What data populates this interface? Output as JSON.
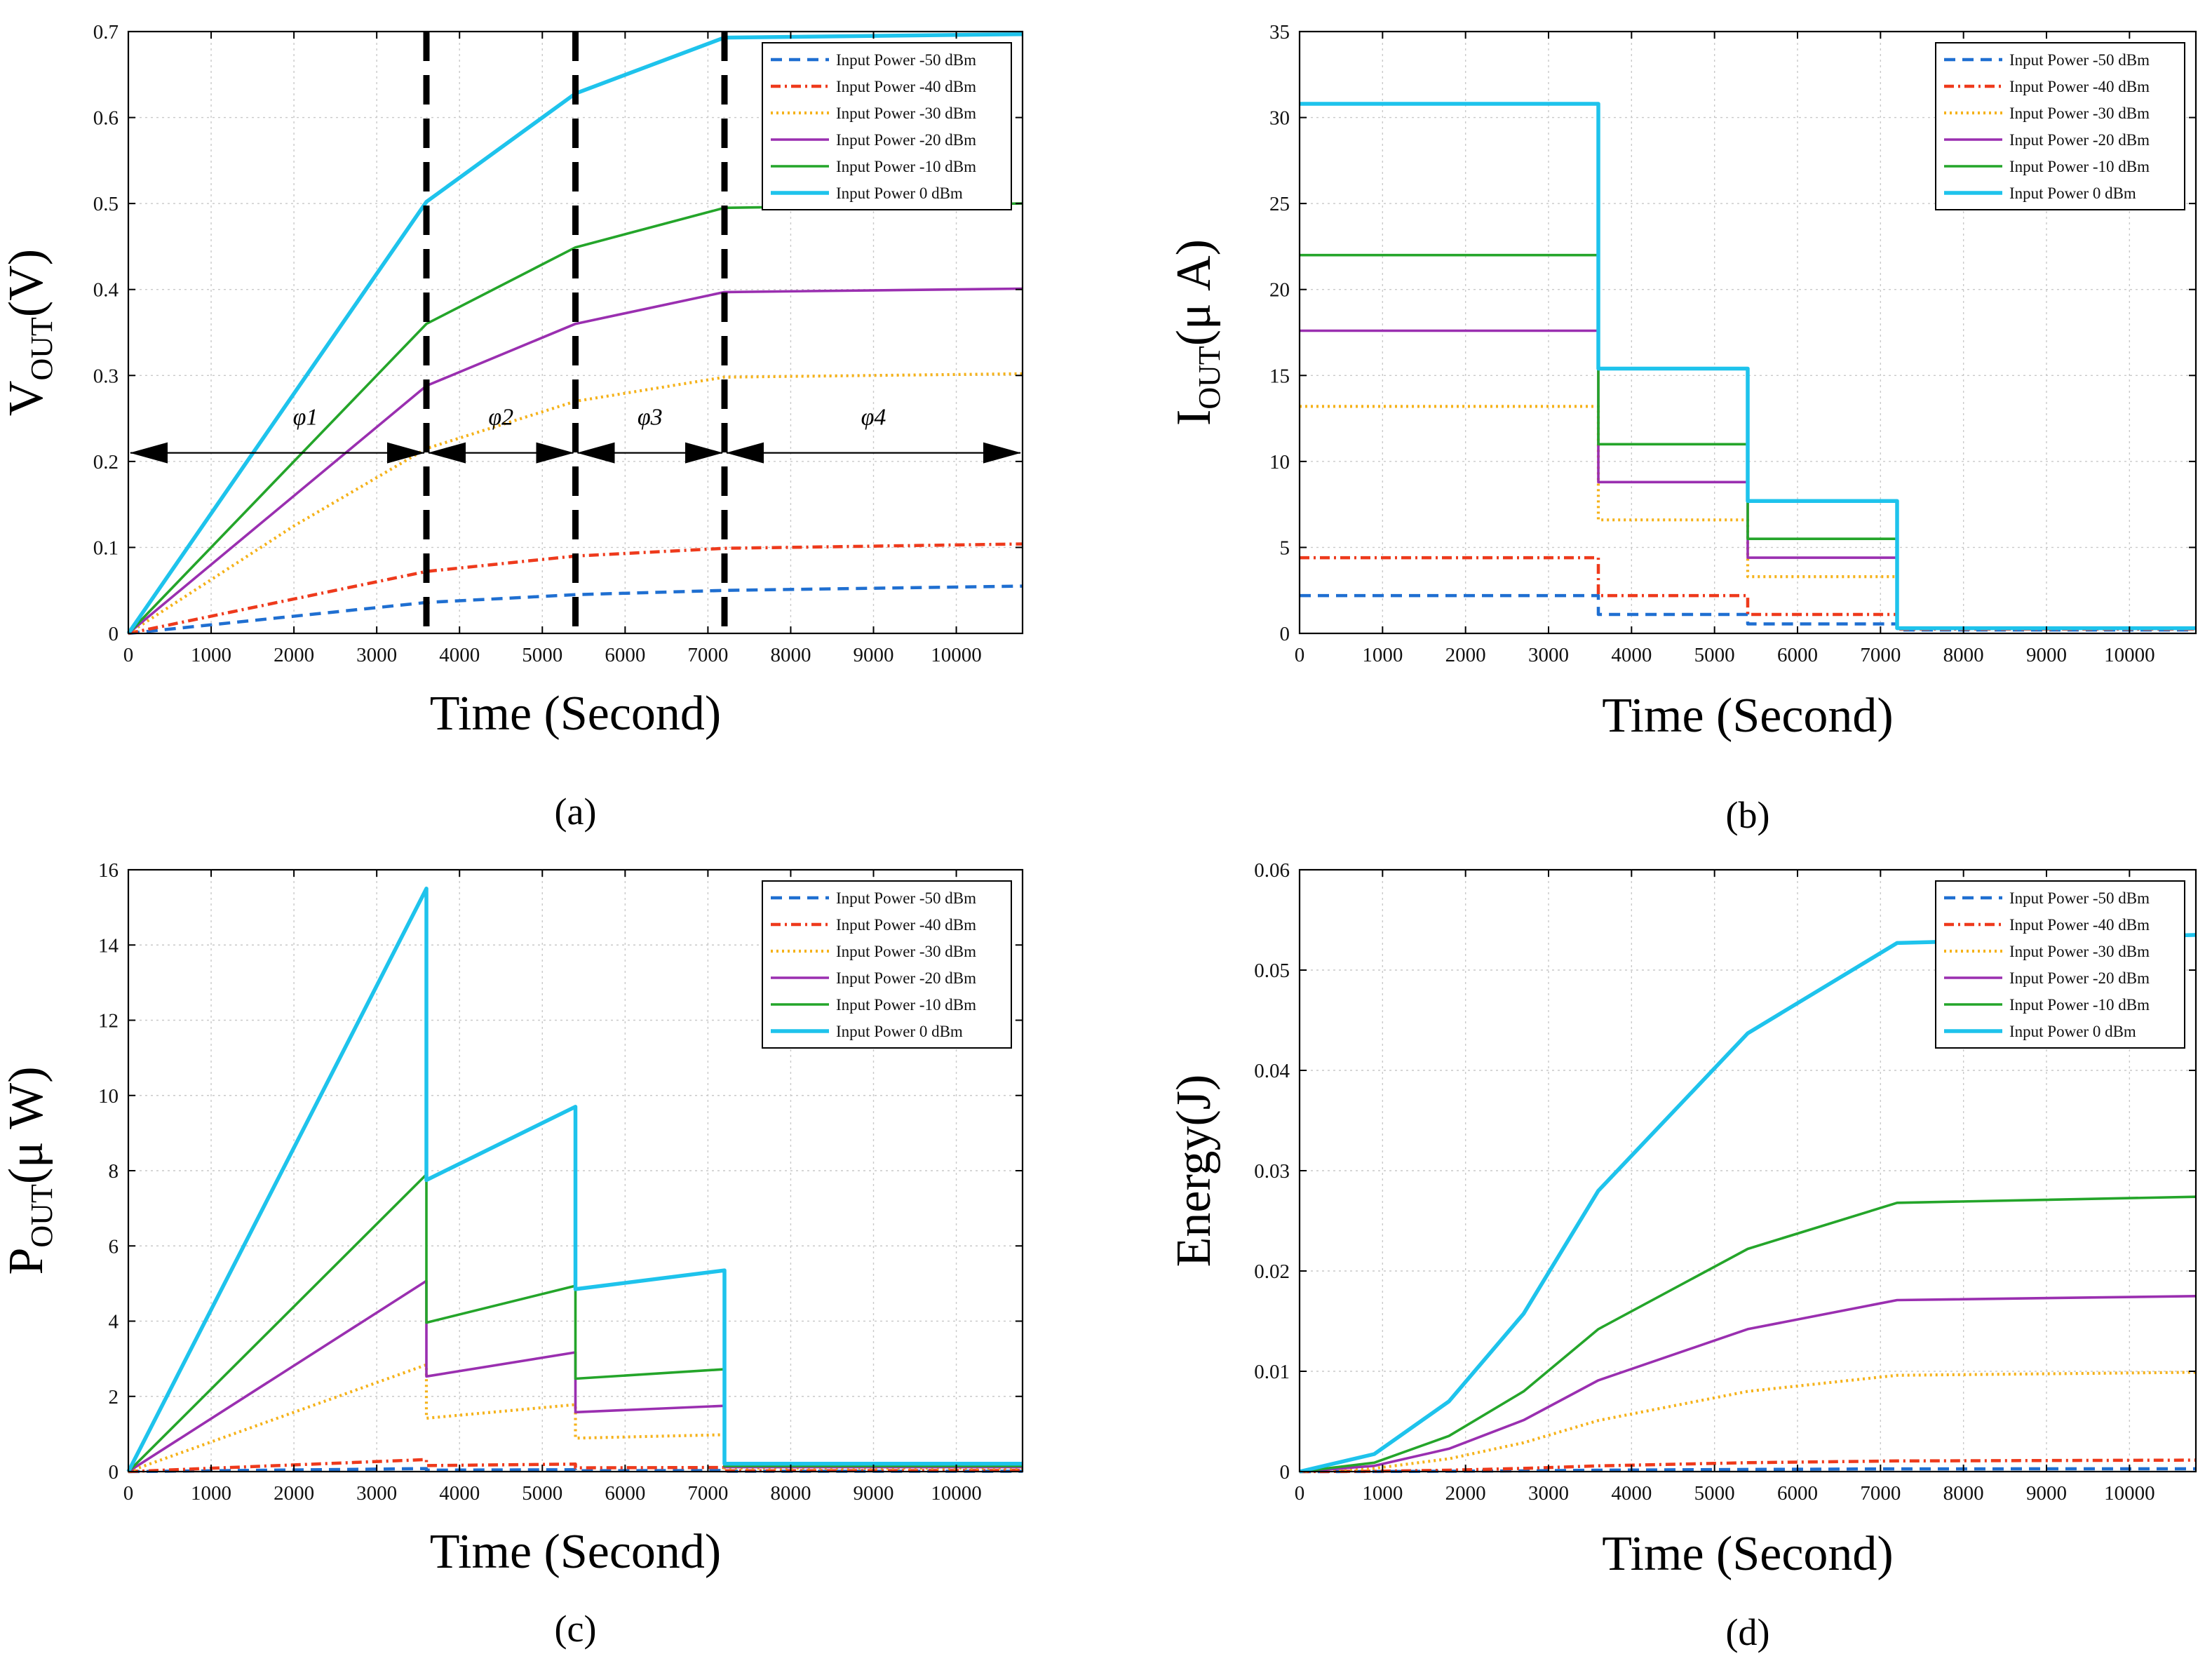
{
  "legend_labels": [
    "Input Power -50 dBm",
    "Input Power -40 dBm",
    "Input Power -30 dBm",
    "Input Power -20 dBm",
    "Input Power -10 dBm",
    "Input Power 0 dBm"
  ],
  "chart_data": [
    {
      "id": "a",
      "type": "line",
      "caption": "(a)",
      "xlabel": "Time (Second)",
      "ylabel": {
        "main": "V",
        "sub": "OUT",
        "rest": "(V)"
      },
      "xlim": [
        0,
        10800
      ],
      "ylim": [
        0,
        0.7
      ],
      "xticks": [
        0,
        1000,
        2000,
        3000,
        4000,
        5000,
        6000,
        7000,
        8000,
        9000,
        10000
      ],
      "yticks": [
        0,
        0.1,
        0.2,
        0.3,
        0.4,
        0.5,
        0.6,
        0.7
      ],
      "grid": true,
      "legend_position": "top-right",
      "phase_lines_x": [
        3600,
        5400,
        7200
      ],
      "phase_arrow_y": 0.21,
      "phases": [
        {
          "label": "φ1",
          "from": 0,
          "to": 3600
        },
        {
          "label": "φ2",
          "from": 3600,
          "to": 5400
        },
        {
          "label": "φ3",
          "from": 5400,
          "to": 7200
        },
        {
          "label": "φ4",
          "from": 7200,
          "to": 10800
        }
      ],
      "series": [
        {
          "name": "Input Power -50 dBm",
          "x": [
            0,
            3600,
            5400,
            7200,
            10800
          ],
          "y": [
            0,
            0.036,
            0.045,
            0.05,
            0.055
          ]
        },
        {
          "name": "Input Power -40 dBm",
          "x": [
            0,
            3600,
            5400,
            7200,
            10800
          ],
          "y": [
            0,
            0.072,
            0.09,
            0.099,
            0.104
          ]
        },
        {
          "name": "Input Power -30 dBm",
          "x": [
            0,
            2000,
            3600,
            5400,
            7200,
            10800
          ],
          "y": [
            0,
            0.125,
            0.215,
            0.27,
            0.298,
            0.302
          ]
        },
        {
          "name": "Input Power -20 dBm",
          "x": [
            0,
            3600,
            5400,
            7200,
            10800
          ],
          "y": [
            0,
            0.288,
            0.36,
            0.397,
            0.401
          ]
        },
        {
          "name": "Input Power -10 dBm",
          "x": [
            0,
            3600,
            5400,
            7200,
            10800
          ],
          "y": [
            0,
            0.36,
            0.449,
            0.495,
            0.5
          ]
        },
        {
          "name": "Input Power 0 dBm",
          "x": [
            0,
            3600,
            5400,
            7200,
            10800
          ],
          "y": [
            0,
            0.502,
            0.628,
            0.693,
            0.697
          ]
        }
      ]
    },
    {
      "id": "b",
      "type": "line",
      "caption": "(b)",
      "xlabel": "Time (Second)",
      "ylabel": {
        "main": "I",
        "sub": "OUT",
        "rest": "(μ A)"
      },
      "xlim": [
        0,
        10800
      ],
      "ylim": [
        0,
        35
      ],
      "xticks": [
        0,
        1000,
        2000,
        3000,
        4000,
        5000,
        6000,
        7000,
        8000,
        9000,
        10000
      ],
      "yticks": [
        0,
        5,
        10,
        15,
        20,
        25,
        30,
        35
      ],
      "grid": true,
      "legend_position": "top-right",
      "series": [
        {
          "name": "Input Power -50 dBm",
          "x": [
            0,
            3600,
            3600,
            5400,
            5400,
            7200,
            7200,
            10800
          ],
          "y": [
            2.2,
            2.2,
            1.1,
            1.1,
            0.55,
            0.55,
            0.2,
            0.2
          ]
        },
        {
          "name": "Input Power -40 dBm",
          "x": [
            0,
            3600,
            3600,
            5400,
            5400,
            7200,
            7200,
            10800
          ],
          "y": [
            4.4,
            4.4,
            2.2,
            2.2,
            1.1,
            1.1,
            0.25,
            0.25
          ]
        },
        {
          "name": "Input Power -30 dBm",
          "x": [
            0,
            3600,
            3600,
            5400,
            5400,
            7200,
            7200,
            10800
          ],
          "y": [
            13.2,
            13.2,
            6.6,
            6.6,
            3.3,
            3.3,
            0.3,
            0.3
          ]
        },
        {
          "name": "Input Power -20 dBm",
          "x": [
            0,
            3600,
            3600,
            5400,
            5400,
            7200,
            7200,
            10800
          ],
          "y": [
            17.6,
            17.6,
            8.8,
            8.8,
            4.4,
            4.4,
            0.3,
            0.3
          ]
        },
        {
          "name": "Input Power -10 dBm",
          "x": [
            0,
            3600,
            3600,
            5400,
            5400,
            7200,
            7200,
            10800
          ],
          "y": [
            22,
            22,
            11,
            11,
            5.5,
            5.5,
            0.3,
            0.3
          ]
        },
        {
          "name": "Input Power 0 dBm",
          "x": [
            0,
            3600,
            3600,
            5400,
            5400,
            7200,
            7200,
            10800
          ],
          "y": [
            30.8,
            30.8,
            15.4,
            15.4,
            7.7,
            7.7,
            0.3,
            0.3
          ]
        }
      ]
    },
    {
      "id": "c",
      "type": "line",
      "caption": "(c)",
      "xlabel": "Time (Second)",
      "ylabel": {
        "main": "P",
        "sub": "OUT",
        "rest": "(μ W)"
      },
      "xlim": [
        0,
        10800
      ],
      "ylim": [
        0,
        16
      ],
      "xticks": [
        0,
        1000,
        2000,
        3000,
        4000,
        5000,
        6000,
        7000,
        8000,
        9000,
        10000
      ],
      "yticks": [
        0,
        2,
        4,
        6,
        8,
        10,
        12,
        14,
        16
      ],
      "grid": true,
      "legend_position": "top-right",
      "series": [
        {
          "name": "Input Power -50 dBm",
          "x": [
            0,
            3600,
            3600,
            5400,
            5400,
            7200,
            7200,
            10800
          ],
          "y": [
            0,
            0.08,
            0.04,
            0.05,
            0.025,
            0.03,
            0.01,
            0.01
          ]
        },
        {
          "name": "Input Power -40 dBm",
          "x": [
            0,
            3600,
            3600,
            5400,
            5400,
            7200,
            7200,
            10800
          ],
          "y": [
            0,
            0.32,
            0.16,
            0.2,
            0.1,
            0.11,
            0.02,
            0.03
          ]
        },
        {
          "name": "Input Power -30 dBm",
          "x": [
            0,
            3600,
            3600,
            5400,
            5400,
            7200,
            7200,
            10800
          ],
          "y": [
            0,
            2.84,
            1.42,
            1.78,
            0.89,
            0.98,
            0.09,
            0.09
          ]
        },
        {
          "name": "Input Power -20 dBm",
          "x": [
            0,
            3600,
            3600,
            5400,
            5400,
            7200,
            7200,
            10800
          ],
          "y": [
            0,
            5.07,
            2.53,
            3.17,
            1.58,
            1.75,
            0.12,
            0.12
          ]
        },
        {
          "name": "Input Power -10 dBm",
          "x": [
            0,
            3600,
            3600,
            5400,
            5400,
            7200,
            7200,
            10800
          ],
          "y": [
            0,
            7.9,
            3.96,
            4.94,
            2.47,
            2.72,
            0.15,
            0.15
          ]
        },
        {
          "name": "Input Power 0 dBm",
          "x": [
            0,
            3600,
            3600,
            5400,
            5400,
            7200,
            7200,
            10800
          ],
          "y": [
            0,
            15.5,
            7.75,
            9.7,
            4.85,
            5.35,
            0.21,
            0.21
          ]
        }
      ]
    },
    {
      "id": "d",
      "type": "line",
      "caption": "(d)",
      "xlabel": "Time (Second)",
      "ylabel": {
        "main": "Energy(J)",
        "sub": "",
        "rest": ""
      },
      "xlim": [
        0,
        10800
      ],
      "ylim": [
        0,
        0.06
      ],
      "xticks": [
        0,
        1000,
        2000,
        3000,
        4000,
        5000,
        6000,
        7000,
        8000,
        9000,
        10000
      ],
      "yticks": [
        0,
        0.01,
        0.02,
        0.03,
        0.04,
        0.05,
        0.06
      ],
      "ytick_labels": [
        "0",
        "0.01",
        "0.02",
        "0.03",
        "0.04",
        "0.05",
        "0.06"
      ],
      "grid": true,
      "legend_position": "top-right",
      "series": [
        {
          "name": "Input Power -50 dBm",
          "x": [
            0,
            900,
            1800,
            2700,
            3600,
            5400,
            7200,
            10800
          ],
          "y": [
            0,
            8.8e-06,
            3.5e-05,
            7.88e-05,
            0.00014,
            0.00022,
            0.00027,
            0.00028
          ]
        },
        {
          "name": "Input Power -40 dBm",
          "x": [
            0,
            900,
            1800,
            2700,
            3600,
            5400,
            7200,
            10800
          ],
          "y": [
            0,
            3.56e-05,
            0.000143,
            0.00032,
            0.00057,
            0.00089,
            0.00106,
            0.00115
          ]
        },
        {
          "name": "Input Power -30 dBm",
          "x": [
            0,
            900,
            1800,
            2700,
            3600,
            5400,
            7200,
            10800
          ],
          "y": [
            0,
            0.00032,
            0.00128,
            0.00288,
            0.0051,
            0.008,
            0.0096,
            0.0099
          ]
        },
        {
          "name": "Input Power -20 dBm",
          "x": [
            0,
            900,
            1800,
            2700,
            3600,
            5400,
            7200,
            10800
          ],
          "y": [
            0,
            0.00057,
            0.00228,
            0.00513,
            0.0091,
            0.0142,
            0.0171,
            0.0175
          ]
        },
        {
          "name": "Input Power -10 dBm",
          "x": [
            0,
            900,
            1800,
            2700,
            3600,
            5400,
            7200,
            10800
          ],
          "y": [
            0,
            0.00089,
            0.00355,
            0.008,
            0.0142,
            0.0222,
            0.0268,
            0.0274
          ]
        },
        {
          "name": "Input Power 0 dBm",
          "x": [
            0,
            900,
            1800,
            2700,
            3600,
            5400,
            7200,
            10800
          ],
          "y": [
            0,
            0.00175,
            0.007,
            0.01575,
            0.028,
            0.0437,
            0.0527,
            0.0535
          ]
        }
      ]
    }
  ]
}
